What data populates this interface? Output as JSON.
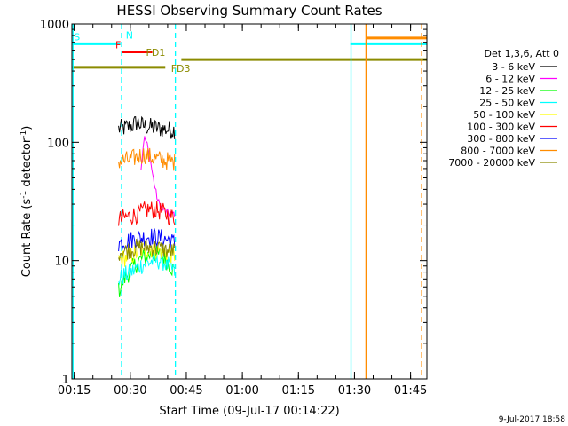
{
  "chart_data": {
    "type": "line",
    "title": "HESSI Observing Summary Count Rates",
    "xlabel": "Start Time (09-Jul-17 00:14:22)",
    "ylabel_main": "Count Rate (s",
    "ylabel_sup1": "-1",
    "ylabel_mid": " detector",
    "ylabel_sup2": "-1",
    "ylabel_end": ")",
    "x_unit": "minutes since 00:14:22",
    "xlim": [
      0,
      95
    ],
    "ylim": [
      1,
      1000
    ],
    "yscale": "log",
    "x_ticks": [
      {
        "value": 0.63,
        "label": "00:15"
      },
      {
        "value": 15.63,
        "label": "00:30"
      },
      {
        "value": 30.63,
        "label": "00:45"
      },
      {
        "value": 45.63,
        "label": "01:00"
      },
      {
        "value": 60.63,
        "label": "01:15"
      },
      {
        "value": 75.63,
        "label": "01:30"
      },
      {
        "value": 90.63,
        "label": "01:45"
      }
    ],
    "y_ticks": [
      {
        "value": 1,
        "label": "1"
      },
      {
        "value": 10,
        "label": "10"
      },
      {
        "value": 100,
        "label": "100"
      },
      {
        "value": 1000,
        "label": "1000"
      }
    ],
    "legend_title": "Det 1,3,6, Att 0",
    "legend_position": "right",
    "series": [
      {
        "name": "3 - 6 keV",
        "color": "#000000",
        "points": [
          [
            12.5,
            130
          ],
          [
            14,
            132
          ],
          [
            16,
            138
          ],
          [
            17.5,
            148
          ],
          [
            18.5,
            140
          ],
          [
            20,
            136
          ],
          [
            22,
            133
          ],
          [
            24,
            130
          ],
          [
            26,
            128
          ],
          [
            27.5,
            127
          ]
        ]
      },
      {
        "name": "6 - 12 keV",
        "color": "#ff00ff",
        "points": [
          [
            18.5,
            60
          ],
          [
            19.3,
            110
          ],
          [
            20,
            100
          ],
          [
            21,
            70
          ],
          [
            22,
            45
          ],
          [
            23,
            32
          ],
          [
            24,
            28
          ],
          [
            25,
            26
          ],
          [
            26,
            25
          ],
          [
            27.5,
            25
          ]
        ]
      },
      {
        "name": "12 - 25 keV",
        "color": "#00ff00",
        "points": [
          [
            12.5,
            5.5
          ],
          [
            14,
            7
          ],
          [
            16,
            8.5
          ],
          [
            18,
            10
          ],
          [
            20,
            11
          ],
          [
            22,
            11.5
          ],
          [
            24,
            11
          ],
          [
            26,
            9.5
          ],
          [
            27.5,
            8
          ]
        ]
      },
      {
        "name": "25 - 50 keV",
        "color": "#00ffff",
        "points": [
          [
            12.5,
            7
          ],
          [
            14,
            7.5
          ],
          [
            16,
            8
          ],
          [
            18,
            9
          ],
          [
            20,
            9.5
          ],
          [
            22,
            10
          ],
          [
            24,
            10
          ],
          [
            26,
            9
          ],
          [
            27.5,
            8
          ]
        ]
      },
      {
        "name": "50 - 100 keV",
        "color": "#ffff00",
        "points": [
          [
            12.5,
            10
          ],
          [
            14,
            10.5
          ],
          [
            16,
            11
          ],
          [
            18,
            12
          ],
          [
            20,
            12.5
          ],
          [
            22,
            12.5
          ],
          [
            24,
            12
          ],
          [
            26,
            11.5
          ],
          [
            27.5,
            11
          ]
        ]
      },
      {
        "name": "100 - 300 keV",
        "color": "#ff0000",
        "points": [
          [
            12.5,
            22
          ],
          [
            14,
            23
          ],
          [
            16,
            24
          ],
          [
            18,
            25
          ],
          [
            20,
            27
          ],
          [
            22,
            27
          ],
          [
            24,
            26
          ],
          [
            26,
            24
          ],
          [
            27.5,
            23
          ]
        ]
      },
      {
        "name": "300 - 800 keV",
        "color": "#0000ff",
        "points": [
          [
            12.5,
            14
          ],
          [
            14,
            14.5
          ],
          [
            16,
            15
          ],
          [
            18,
            15.5
          ],
          [
            20,
            16
          ],
          [
            22,
            16
          ],
          [
            24,
            15.5
          ],
          [
            26,
            15
          ],
          [
            27.5,
            14
          ]
        ]
      },
      {
        "name": "800 - 7000 keV",
        "color": "#ff8c00",
        "points": [
          [
            12.5,
            69
          ],
          [
            14,
            70
          ],
          [
            16,
            72
          ],
          [
            18,
            77
          ],
          [
            19.5,
            79
          ],
          [
            21,
            75
          ],
          [
            23,
            72
          ],
          [
            25,
            70
          ],
          [
            27.5,
            68
          ]
        ]
      },
      {
        "name": "7000 - 20000 keV",
        "color": "#8b8b00",
        "points": [
          [
            12.5,
            12
          ],
          [
            14,
            12
          ],
          [
            16,
            12.5
          ],
          [
            18,
            13
          ],
          [
            20,
            13
          ],
          [
            22,
            13
          ],
          [
            24,
            12.5
          ],
          [
            26,
            12
          ],
          [
            27.5,
            12
          ]
        ]
      }
    ],
    "flag_bars": [
      {
        "label": "S",
        "color": "#00ffff",
        "y": 680,
        "ranges": [
          [
            0,
            13
          ]
        ],
        "label_x": 0.3
      },
      {
        "label": "",
        "color": "#00ffff",
        "y": 680,
        "ranges": [
          [
            74.5,
            95
          ]
        ]
      },
      {
        "label": "N",
        "color": "#00ffff",
        "y": 700,
        "ranges": [],
        "label_x": 14.2
      },
      {
        "label": "F",
        "color": "#ff0000",
        "y": 580,
        "ranges": [
          [
            13.2,
            21.5
          ]
        ],
        "label_x": 11.4
      },
      {
        "label": "FD1",
        "color": "#8b8b00",
        "y": 500,
        "ranges": [
          [
            29.3,
            95
          ]
        ],
        "label_x": 19.6
      },
      {
        "label": "FD3",
        "color": "#8b8b00",
        "y": 430,
        "ranges": [
          [
            0,
            25
          ]
        ],
        "label_x": 26.3
      },
      {
        "label": "",
        "color": "#ff8c00",
        "y": 760,
        "ranges": [
          [
            79,
            95
          ]
        ]
      }
    ],
    "vlines": [
      {
        "x": 0.3,
        "color": "#00ffff",
        "style": "solid"
      },
      {
        "x": 13.3,
        "color": "#00ffff",
        "style": "dashed"
      },
      {
        "x": 27.7,
        "color": "#00ffff",
        "style": "dashed"
      },
      {
        "x": 74.7,
        "color": "#00ffff",
        "style": "solid"
      },
      {
        "x": 78.7,
        "color": "#ff8c00",
        "style": "solid"
      },
      {
        "x": 93.6,
        "color": "#ff8c00",
        "style": "dashed"
      }
    ],
    "timestamp": "9-Jul-2017 18:58"
  }
}
